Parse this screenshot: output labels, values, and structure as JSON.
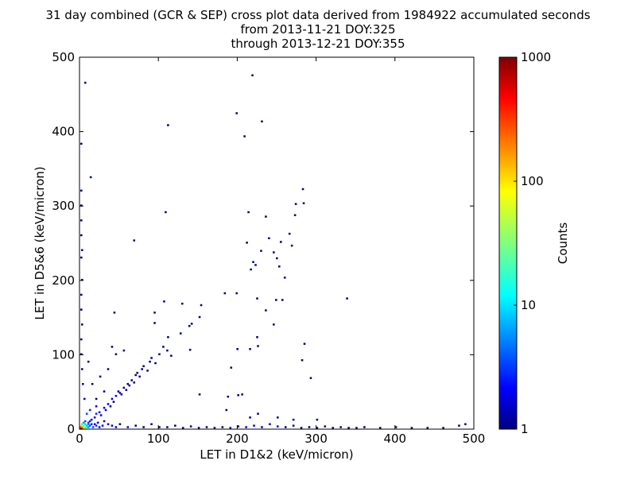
{
  "chart_data": {
    "type": "heatmap",
    "title_lines": [
      "31 day combined (GCR & SEP) cross plot data derived from 1984922 accumulated seconds",
      "from 2013-11-21 DOY:325",
      "through 2013-12-21 DOY:355"
    ],
    "xlabel": "LET in D1&2 (keV/micron)",
    "ylabel": "LET in D5&6 (keV/micron)",
    "xlim": [
      0,
      500
    ],
    "ylim": [
      0,
      500
    ],
    "xticks": [
      "0",
      "100",
      "200",
      "300",
      "400",
      "500"
    ],
    "yticks": [
      "0",
      "100",
      "200",
      "300",
      "400",
      "500"
    ],
    "bin_size": 2,
    "colorbar": {
      "label": "Counts",
      "scale": "log",
      "range": [
        1,
        1000
      ],
      "ticks": [
        "1",
        "10",
        "100",
        "1000"
      ],
      "colormap": "jet"
    },
    "points_xy_count": [
      [
        0,
        0,
        800
      ],
      [
        2,
        0,
        300
      ],
      [
        0,
        2,
        200
      ],
      [
        2,
        2,
        150
      ],
      [
        4,
        0,
        80
      ],
      [
        0,
        4,
        60
      ],
      [
        4,
        2,
        50
      ],
      [
        2,
        4,
        40
      ],
      [
        6,
        0,
        30
      ],
      [
        6,
        2,
        20
      ],
      [
        4,
        4,
        25
      ],
      [
        8,
        2,
        12
      ],
      [
        2,
        6,
        15
      ],
      [
        8,
        4,
        8
      ],
      [
        6,
        6,
        10
      ],
      [
        10,
        2,
        6
      ],
      [
        10,
        6,
        5
      ],
      [
        12,
        4,
        4
      ],
      [
        4,
        8,
        6
      ],
      [
        6,
        10,
        4
      ],
      [
        14,
        6,
        3
      ],
      [
        16,
        2,
        4
      ],
      [
        12,
        10,
        3
      ],
      [
        18,
        6,
        2
      ],
      [
        20,
        4,
        3
      ],
      [
        22,
        8,
        2
      ],
      [
        24,
        2,
        2
      ],
      [
        28,
        4,
        2
      ],
      [
        30,
        10,
        2
      ],
      [
        35,
        6,
        2
      ],
      [
        40,
        4,
        2
      ],
      [
        45,
        2,
        2
      ],
      [
        50,
        6,
        1
      ],
      [
        60,
        2,
        2
      ],
      [
        70,
        4,
        1
      ],
      [
        80,
        2,
        1
      ],
      [
        90,
        6,
        1
      ],
      [
        100,
        2,
        1
      ],
      [
        10,
        8,
        3
      ],
      [
        14,
        12,
        2
      ],
      [
        18,
        15,
        2
      ],
      [
        20,
        20,
        3
      ],
      [
        24,
        22,
        2
      ],
      [
        26,
        18,
        2
      ],
      [
        30,
        28,
        2
      ],
      [
        32,
        25,
        2
      ],
      [
        35,
        33,
        2
      ],
      [
        38,
        30,
        1
      ],
      [
        40,
        40,
        2
      ],
      [
        42,
        36,
        1
      ],
      [
        45,
        44,
        2
      ],
      [
        48,
        50,
        1
      ],
      [
        50,
        48,
        2
      ],
      [
        52,
        46,
        1
      ],
      [
        55,
        55,
        1
      ],
      [
        58,
        52,
        1
      ],
      [
        60,
        60,
        1
      ],
      [
        62,
        58,
        1
      ],
      [
        65,
        65,
        1
      ],
      [
        68,
        62,
        1
      ],
      [
        70,
        72,
        1
      ],
      [
        72,
        75,
        1
      ],
      [
        75,
        70,
        1
      ],
      [
        78,
        80,
        1
      ],
      [
        80,
        84,
        1
      ],
      [
        85,
        78,
        1
      ],
      [
        88,
        90,
        1
      ],
      [
        90,
        95,
        1
      ],
      [
        95,
        88,
        1
      ],
      [
        100,
        100,
        1
      ],
      [
        105,
        110,
        1
      ],
      [
        110,
        105,
        1
      ],
      [
        115,
        98,
        1
      ],
      [
        20,
        40,
        1
      ],
      [
        30,
        50,
        1
      ],
      [
        15,
        60,
        1
      ],
      [
        25,
        70,
        1
      ],
      [
        35,
        80,
        1
      ],
      [
        10,
        90,
        1
      ],
      [
        45,
        100,
        1
      ],
      [
        55,
        105,
        1
      ],
      [
        40,
        110,
        1
      ],
      [
        20,
        30,
        2
      ],
      [
        12,
        25,
        3
      ],
      [
        8,
        20,
        4
      ],
      [
        5,
        40,
        2
      ],
      [
        3,
        60,
        2
      ],
      [
        2,
        80,
        1
      ],
      [
        1,
        100,
        1
      ],
      [
        1,
        120,
        1
      ],
      [
        2,
        140,
        1
      ],
      [
        1,
        160,
        1
      ],
      [
        1,
        180,
        1
      ],
      [
        2,
        200,
        1
      ],
      [
        1,
        230,
        1
      ],
      [
        2,
        240,
        1
      ],
      [
        1,
        260,
        1
      ],
      [
        1,
        280,
        1
      ],
      [
        1,
        300,
        1
      ],
      [
        1,
        320,
        1
      ],
      [
        110,
        2,
        1
      ],
      [
        120,
        4,
        1
      ],
      [
        130,
        1,
        1
      ],
      [
        140,
        3,
        1
      ],
      [
        150,
        1,
        1
      ],
      [
        160,
        2,
        1
      ],
      [
        170,
        1,
        1
      ],
      [
        180,
        2,
        1
      ],
      [
        190,
        1,
        2
      ],
      [
        200,
        3,
        1
      ],
      [
        210,
        2,
        2
      ],
      [
        220,
        4,
        2
      ],
      [
        230,
        2,
        2
      ],
      [
        240,
        6,
        2
      ],
      [
        250,
        3,
        2
      ],
      [
        260,
        2,
        1
      ],
      [
        270,
        4,
        1
      ],
      [
        280,
        1,
        1
      ],
      [
        290,
        2,
        1
      ],
      [
        300,
        1,
        1
      ],
      [
        310,
        3,
        1
      ],
      [
        320,
        1,
        1
      ],
      [
        330,
        2,
        1
      ],
      [
        340,
        1,
        1
      ],
      [
        350,
        1,
        1
      ],
      [
        360,
        2,
        1
      ],
      [
        380,
        1,
        1
      ],
      [
        400,
        2,
        1
      ],
      [
        420,
        1,
        1
      ],
      [
        440,
        1,
        1
      ],
      [
        460,
        1,
        1
      ],
      [
        480,
        4,
        1
      ],
      [
        488,
        6,
        1
      ],
      [
        215,
        15,
        1
      ],
      [
        225,
        20,
        1
      ],
      [
        250,
        15,
        1
      ],
      [
        270,
        12,
        1
      ],
      [
        300,
        12,
        1
      ],
      [
        200,
        45,
        1
      ],
      [
        185,
        25,
        1
      ],
      [
        218,
        475,
        1
      ],
      [
        198,
        424,
        1
      ],
      [
        111,
        408,
        1
      ],
      [
        230,
        413,
        1
      ],
      [
        208,
        393,
        1
      ],
      [
        6,
        465,
        1
      ],
      [
        1,
        383,
        1
      ],
      [
        13,
        338,
        1
      ],
      [
        282,
        322,
        1
      ],
      [
        283,
        303,
        1
      ],
      [
        273,
        302,
        1
      ],
      [
        235,
        285,
        1
      ],
      [
        272,
        287,
        1
      ],
      [
        108,
        291,
        1
      ],
      [
        213,
        291,
        1
      ],
      [
        265,
        262,
        1
      ],
      [
        211,
        250,
        1
      ],
      [
        68,
        253,
        1
      ],
      [
        268,
        246,
        1
      ],
      [
        239,
        256,
        1
      ],
      [
        229,
        239,
        1
      ],
      [
        254,
        251,
        1
      ],
      [
        219,
        224,
        1
      ],
      [
        222,
        220,
        1
      ],
      [
        245,
        237,
        1
      ],
      [
        249,
        229,
        1
      ],
      [
        252,
        218,
        1
      ],
      [
        259,
        203,
        1
      ],
      [
        198,
        182,
        1
      ],
      [
        183,
        182,
        1
      ],
      [
        216,
        214,
        1
      ],
      [
        224,
        175,
        1
      ],
      [
        248,
        173,
        1
      ],
      [
        256,
        173,
        1
      ],
      [
        338,
        175,
        1
      ],
      [
        284,
        114,
        1
      ],
      [
        224,
        123,
        1
      ],
      [
        225,
        111,
        1
      ],
      [
        199,
        107,
        1
      ],
      [
        215,
        107,
        1
      ],
      [
        281,
        92,
        1
      ],
      [
        292,
        68,
        1
      ],
      [
        235,
        159,
        1
      ],
      [
        245,
        140,
        1
      ],
      [
        94,
        156,
        1
      ],
      [
        106,
        171,
        1
      ],
      [
        43,
        156,
        1
      ],
      [
        151,
        150,
        1
      ],
      [
        153,
        166,
        1
      ],
      [
        129,
        168,
        1
      ],
      [
        141,
        141,
        1
      ],
      [
        138,
        138,
        1
      ],
      [
        127,
        128,
        1
      ],
      [
        94,
        142,
        1
      ],
      [
        139,
        106,
        1
      ],
      [
        191,
        82,
        1
      ],
      [
        111,
        123,
        1
      ],
      [
        151,
        46,
        1
      ],
      [
        205,
        46,
        1
      ],
      [
        187,
        43,
        1
      ]
    ]
  }
}
